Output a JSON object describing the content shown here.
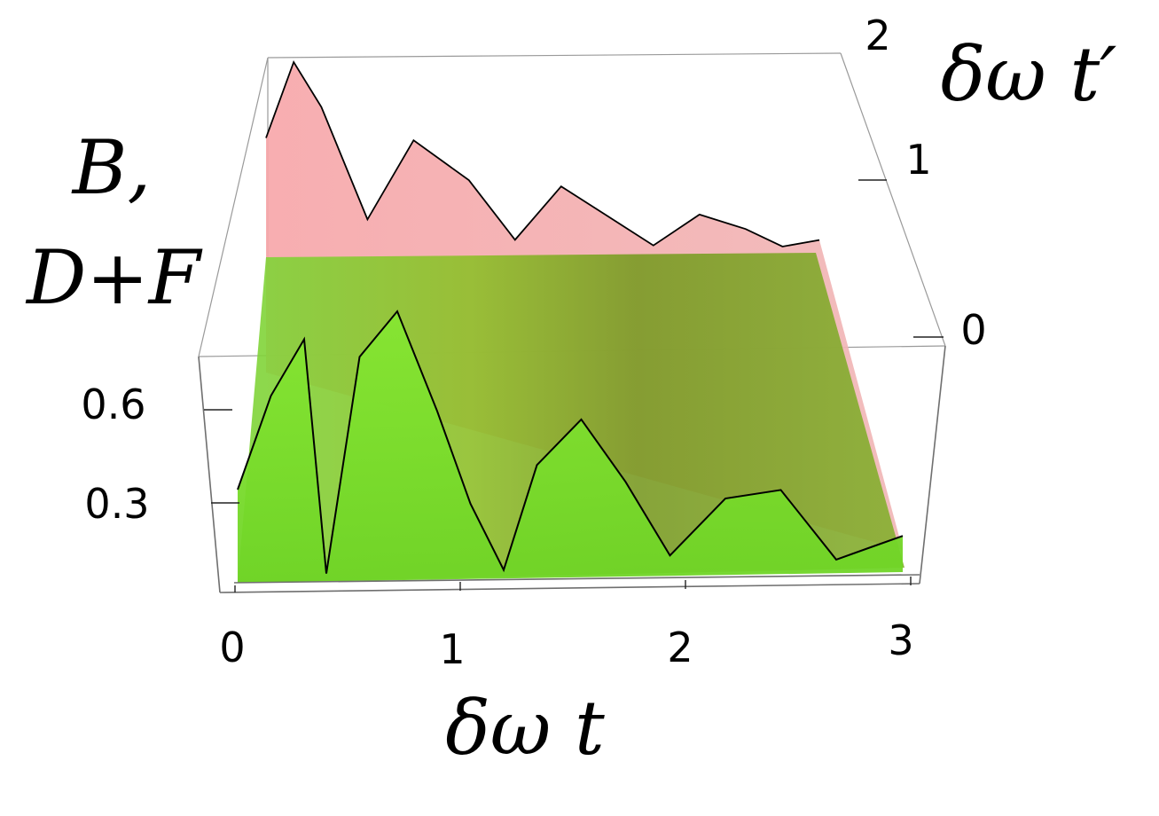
{
  "chart_data": {
    "type": "surface3d",
    "title": "",
    "xlabel": "δω t",
    "ylabel": "δω t′",
    "zlabel_lines": [
      "B,",
      "D+F"
    ],
    "x_ticks": [
      "0",
      "1",
      "2",
      "3"
    ],
    "y_ticks": [
      "0",
      "1",
      "2"
    ],
    "z_ticks": [
      "0.3",
      "0.6"
    ],
    "xlim": [
      0,
      3
    ],
    "ylim": [
      0,
      2
    ],
    "zlim": [
      0,
      1.0
    ],
    "series": [
      {
        "color": "#f4a4a8",
        "edge_color": "#000000",
        "back_edge_x": [
          0,
          0.15,
          0.3,
          0.55,
          0.8,
          1.1,
          1.35,
          1.6,
          1.85,
          2.1,
          2.35,
          2.6,
          2.8,
          3.0
        ],
        "back_edge_z": [
          0.85,
          1.35,
          1.05,
          0.3,
          0.82,
          0.55,
          0.15,
          0.5,
          0.3,
          0.1,
          0.3,
          0.2,
          0.08,
          0.12
        ]
      },
      {
        "color": "#7ee52a",
        "edge_color": "#000000",
        "front_edge_x": [
          0,
          0.15,
          0.3,
          0.4,
          0.55,
          0.72,
          0.9,
          1.05,
          1.2,
          1.35,
          1.55,
          1.75,
          1.95,
          2.2,
          2.45,
          2.7,
          2.85,
          3.0
        ],
        "front_edge_z": [
          0.25,
          0.5,
          0.65,
          0.02,
          0.6,
          0.72,
          0.45,
          0.2,
          0.02,
          0.3,
          0.42,
          0.25,
          0.05,
          0.2,
          0.22,
          0.03,
          0.06,
          0.09
        ]
      }
    ],
    "grid": false,
    "legend": "none"
  }
}
